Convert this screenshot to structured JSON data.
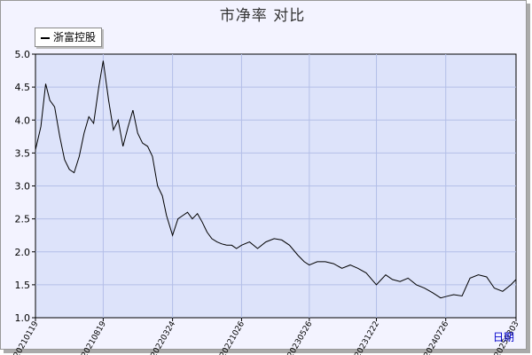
{
  "chart_data": {
    "type": "line",
    "title": "市净率  对比",
    "legend_position": "top-left",
    "grid": true,
    "ylim": [
      1.0,
      5.0
    ],
    "y_ticks": [
      "1.0",
      "1.5",
      "2.0",
      "2.5",
      "3.0",
      "3.5",
      "4.0",
      "4.5",
      "5.0"
    ],
    "x_tick_labels": [
      "20210119",
      "20210819",
      "20220324",
      "20221026",
      "20230526",
      "20231222",
      "20240726",
      "20250303"
    ],
    "series": [
      {
        "name": "浙富控股",
        "color": "#000000",
        "x": [
          "2021-01-19",
          "2021-02-05",
          "2021-02-20",
          "2021-03-05",
          "2021-03-20",
          "2021-04-05",
          "2021-04-20",
          "2021-05-05",
          "2021-05-20",
          "2021-06-05",
          "2021-06-20",
          "2021-07-05",
          "2021-07-20",
          "2021-08-05",
          "2021-08-19",
          "2021-09-05",
          "2021-09-20",
          "2021-10-05",
          "2021-10-20",
          "2021-11-05",
          "2021-11-20",
          "2021-12-05",
          "2021-12-20",
          "2022-01-05",
          "2022-01-20",
          "2022-02-05",
          "2022-02-20",
          "2022-03-05",
          "2022-03-24",
          "2022-04-10",
          "2022-04-25",
          "2022-05-10",
          "2022-05-25",
          "2022-06-10",
          "2022-06-25",
          "2022-07-10",
          "2022-07-25",
          "2022-08-10",
          "2022-08-25",
          "2022-09-10",
          "2022-09-25",
          "2022-10-10",
          "2022-10-26",
          "2022-11-20",
          "2022-12-15",
          "2023-01-10",
          "2023-02-05",
          "2023-03-01",
          "2023-03-25",
          "2023-04-20",
          "2023-05-10",
          "2023-05-26",
          "2023-06-20",
          "2023-07-15",
          "2023-08-10",
          "2023-09-05",
          "2023-10-01",
          "2023-10-25",
          "2023-11-20",
          "2023-12-22",
          "2024-01-20",
          "2024-02-10",
          "2024-03-05",
          "2024-03-30",
          "2024-04-25",
          "2024-05-20",
          "2024-06-15",
          "2024-07-10",
          "2024-07-26",
          "2024-08-20",
          "2024-09-15",
          "2024-10-10",
          "2024-11-05",
          "2024-12-01",
          "2024-12-25",
          "2025-01-20",
          "2025-02-15",
          "2025-03-03"
        ],
        "values": [
          3.55,
          3.9,
          4.55,
          4.3,
          4.2,
          3.75,
          3.4,
          3.25,
          3.2,
          3.45,
          3.8,
          4.05,
          3.95,
          4.5,
          4.9,
          4.3,
          3.85,
          4.0,
          3.6,
          3.9,
          4.15,
          3.8,
          3.65,
          3.6,
          3.45,
          3.0,
          2.85,
          2.55,
          2.25,
          2.5,
          2.55,
          2.6,
          2.5,
          2.58,
          2.45,
          2.3,
          2.2,
          2.15,
          2.12,
          2.1,
          2.1,
          2.05,
          2.1,
          2.15,
          2.05,
          2.15,
          2.2,
          2.18,
          2.1,
          1.95,
          1.85,
          1.8,
          1.85,
          1.85,
          1.82,
          1.75,
          1.8,
          1.75,
          1.68,
          1.5,
          1.65,
          1.58,
          1.55,
          1.6,
          1.5,
          1.45,
          1.38,
          1.3,
          1.32,
          1.35,
          1.33,
          1.6,
          1.65,
          1.62,
          1.45,
          1.4,
          1.5,
          1.58
        ]
      }
    ]
  },
  "footer": {
    "link_label": "日期"
  }
}
